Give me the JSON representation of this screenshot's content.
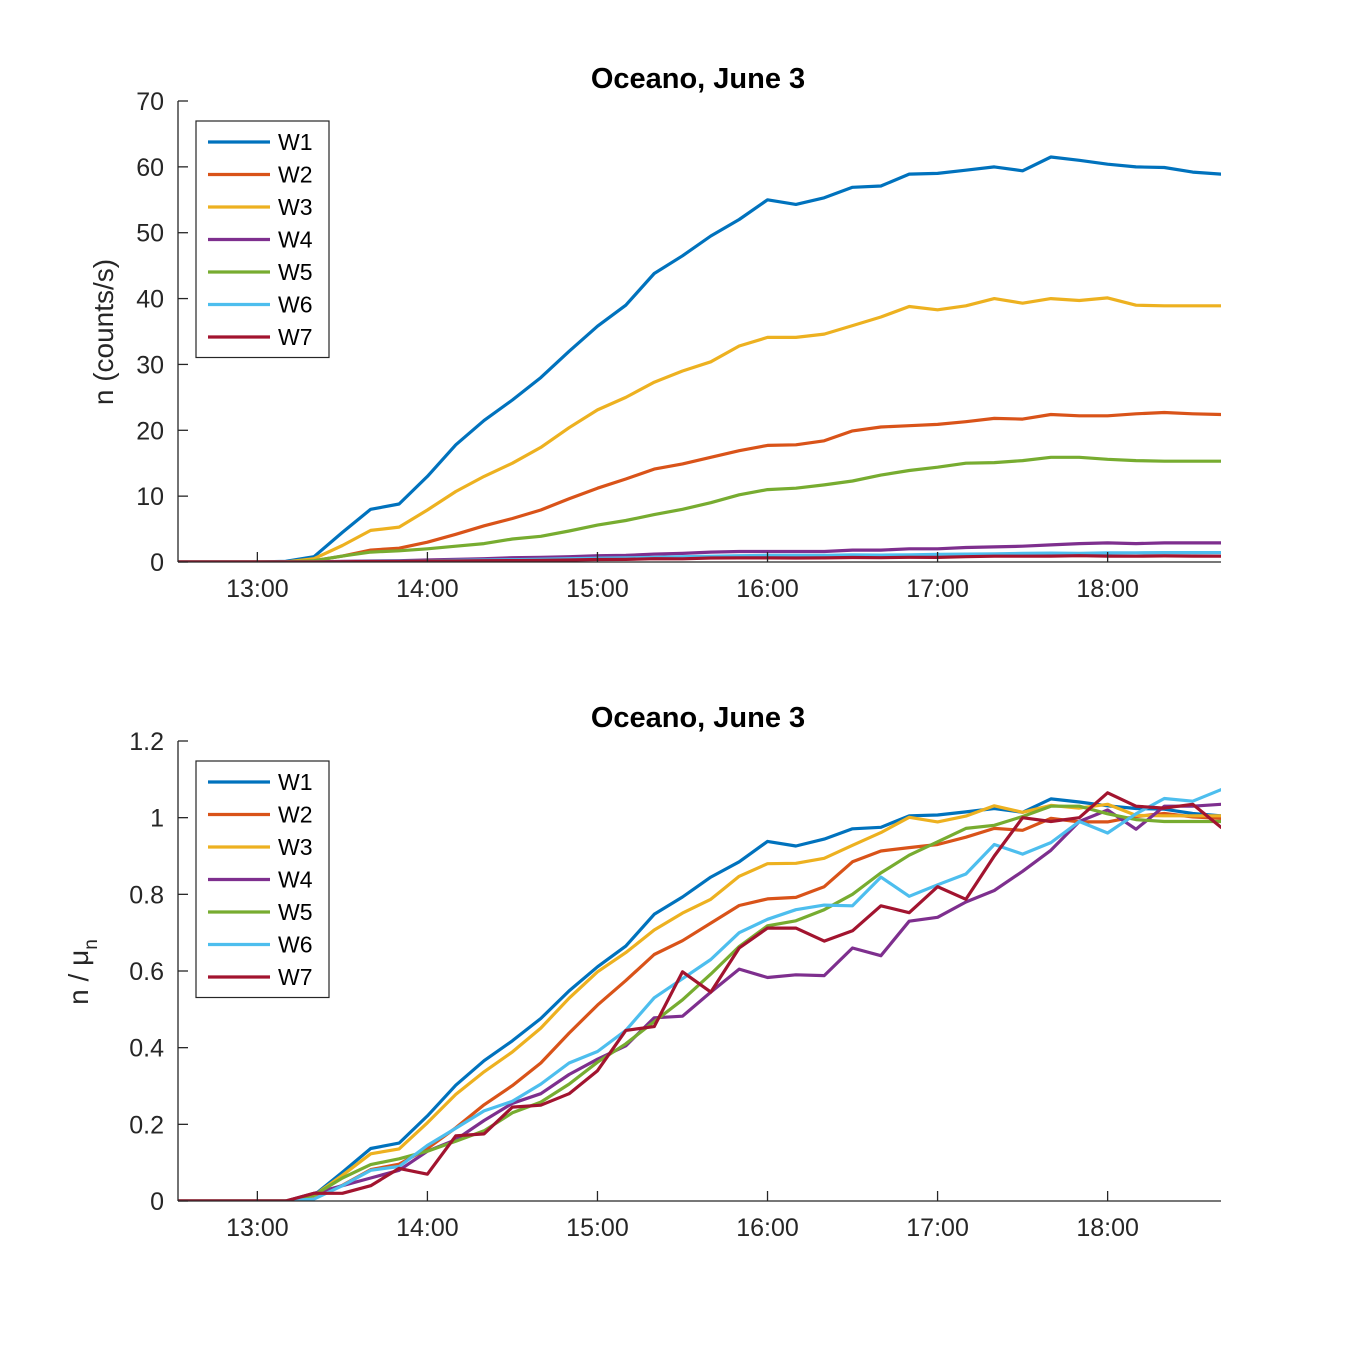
{
  "chart_data": [
    {
      "type": "line",
      "title": "Oceano, June 3",
      "ylabel": "n (counts/s)",
      "xlabel": "",
      "xlim": [
        "12:32",
        "18:40"
      ],
      "ylim": [
        0,
        70
      ],
      "xticks": [
        "13:00",
        "14:00",
        "15:00",
        "16:00",
        "17:00",
        "18:00"
      ],
      "yticks": [
        "0",
        "10",
        "20",
        "30",
        "40",
        "50",
        "60",
        "70"
      ],
      "legend_position": "top-left",
      "grid": false,
      "x": [
        "12:30",
        "12:40",
        "12:50",
        "13:00",
        "13:10",
        "13:20",
        "13:30",
        "13:40",
        "13:50",
        "14:00",
        "14:10",
        "14:20",
        "14:30",
        "14:40",
        "14:50",
        "15:00",
        "15:10",
        "15:20",
        "15:30",
        "15:40",
        "15:50",
        "16:00",
        "16:10",
        "16:20",
        "16:30",
        "16:40",
        "16:50",
        "17:00",
        "17:10",
        "17:20",
        "17:30",
        "17:40",
        "17:50",
        "18:00",
        "18:10",
        "18:20",
        "18:30",
        "18:40"
      ],
      "series": [
        {
          "name": "W1",
          "color": "#0072BD",
          "values": [
            0,
            0,
            0,
            0,
            0.1,
            0.8,
            4.5,
            8.0,
            8.8,
            13,
            17.8,
            21.5,
            24.6,
            28,
            32,
            35.8,
            39,
            43.8,
            46.5,
            49.5,
            52,
            55,
            54.3,
            55.3,
            56.9,
            57.1,
            58.9,
            59,
            59.5,
            60,
            59.4,
            61.5,
            61,
            60.4,
            60,
            59.9,
            59.2,
            58.9
          ]
        },
        {
          "name": "W2",
          "color": "#D95319",
          "values": [
            0,
            0,
            0,
            0,
            0,
            0.2,
            0.9,
            1.8,
            2.1,
            3.0,
            4.2,
            5.5,
            6.6,
            7.9,
            9.6,
            11.2,
            12.6,
            14.1,
            14.9,
            15.9,
            16.9,
            17.7,
            17.8,
            18.4,
            19.9,
            20.5,
            20.7,
            20.9,
            21.3,
            21.8,
            21.7,
            22.4,
            22.2,
            22.2,
            22.5,
            22.7,
            22.5,
            22.4
          ]
        },
        {
          "name": "W3",
          "color": "#EDB120",
          "values": [
            0,
            0,
            0,
            0,
            0,
            0.5,
            2.5,
            4.8,
            5.3,
            7.9,
            10.7,
            13.0,
            15.0,
            17.4,
            20.4,
            23.1,
            25.0,
            27.3,
            29.0,
            30.4,
            32.8,
            34.1,
            34.1,
            34.6,
            35.9,
            37.2,
            38.8,
            38.3,
            38.9,
            40.0,
            39.3,
            40.0,
            39.7,
            40.1,
            39.0,
            38.9,
            38.9,
            38.9
          ]
        },
        {
          "name": "W4",
          "color": "#7E2F8E",
          "values": [
            0,
            0,
            0,
            0,
            0,
            0,
            0.1,
            0.15,
            0.2,
            0.3,
            0.4,
            0.5,
            0.65,
            0.7,
            0.8,
            0.95,
            1.0,
            1.2,
            1.3,
            1.5,
            1.6,
            1.6,
            1.6,
            1.6,
            1.8,
            1.8,
            2.0,
            2.0,
            2.2,
            2.3,
            2.4,
            2.6,
            2.8,
            2.9,
            2.8,
            2.9,
            2.9,
            2.9
          ]
        },
        {
          "name": "W5",
          "color": "#77AC30",
          "values": [
            0,
            0,
            0,
            0,
            0,
            0.2,
            0.9,
            1.5,
            1.7,
            2.0,
            2.4,
            2.8,
            3.5,
            3.9,
            4.7,
            5.6,
            6.3,
            7.2,
            8.0,
            9.0,
            10.2,
            11.0,
            11.2,
            11.7,
            12.3,
            13.2,
            13.9,
            14.4,
            15.0,
            15.1,
            15.4,
            15.9,
            15.9,
            15.6,
            15.4,
            15.3,
            15.3,
            15.3
          ]
        },
        {
          "name": "W6",
          "color": "#4DBEEE",
          "values": [
            0,
            0,
            0,
            0,
            0,
            0,
            0.05,
            0.1,
            0.12,
            0.2,
            0.25,
            0.3,
            0.35,
            0.42,
            0.5,
            0.58,
            0.62,
            0.72,
            0.8,
            0.88,
            0.95,
            1.0,
            1.0,
            1.02,
            1.1,
            1.05,
            1.1,
            1.15,
            1.2,
            1.25,
            1.3,
            1.35,
            1.32,
            1.38,
            1.4,
            1.42,
            1.42,
            1.43
          ]
        },
        {
          "name": "W7",
          "color": "#A2142F",
          "values": [
            0,
            0,
            0,
            0,
            0,
            0,
            0.05,
            0.08,
            0.08,
            0.15,
            0.15,
            0.2,
            0.22,
            0.25,
            0.3,
            0.38,
            0.4,
            0.5,
            0.48,
            0.6,
            0.62,
            0.62,
            0.6,
            0.62,
            0.68,
            0.66,
            0.72,
            0.7,
            0.8,
            0.88,
            0.88,
            0.9,
            0.95,
            0.9,
            0.88,
            0.92,
            0.9,
            0.88
          ]
        }
      ]
    },
    {
      "type": "line",
      "title": "Oceano, June 3",
      "ylabel": "n / μn",
      "xlabel": "",
      "xlim": [
        "12:32",
        "18:40"
      ],
      "ylim": [
        0,
        1.2
      ],
      "xticks": [
        "13:00",
        "14:00",
        "15:00",
        "16:00",
        "17:00",
        "18:00"
      ],
      "yticks": [
        "0",
        "0.2",
        "0.4",
        "0.6",
        "0.8",
        "1",
        "1.2"
      ],
      "legend_position": "top-left",
      "grid": false,
      "x": [
        "12:30",
        "12:40",
        "12:50",
        "13:00",
        "13:10",
        "13:20",
        "13:30",
        "13:40",
        "13:50",
        "14:00",
        "14:10",
        "14:20",
        "14:30",
        "14:40",
        "14:50",
        "15:00",
        "15:10",
        "15:20",
        "15:30",
        "15:40",
        "15:50",
        "16:00",
        "16:10",
        "16:20",
        "16:30",
        "16:40",
        "16:50",
        "17:00",
        "17:10",
        "17:20",
        "17:30",
        "17:40",
        "17:50",
        "18:00",
        "18:10",
        "18:20",
        "18:30",
        "18:40"
      ],
      "series": [
        {
          "name": "W1",
          "color": "#0072BD",
          "values": [
            0,
            0,
            0,
            0,
            0,
            0.015,
            0.075,
            0.137,
            0.151,
            0.222,
            0.302,
            0.366,
            0.418,
            0.476,
            0.548,
            0.611,
            0.665,
            0.748,
            0.793,
            0.845,
            0.885,
            0.938,
            0.926,
            0.944,
            0.971,
            0.975,
            1.005,
            1.007,
            1.015,
            1.024,
            1.014,
            1.049,
            1.041,
            1.031,
            1.024,
            1.022,
            1.011,
            1.005
          ]
        },
        {
          "name": "W2",
          "color": "#D95319",
          "values": [
            0,
            0,
            0,
            0,
            0,
            0.009,
            0.041,
            0.082,
            0.096,
            0.137,
            0.191,
            0.251,
            0.301,
            0.36,
            0.438,
            0.511,
            0.575,
            0.643,
            0.679,
            0.725,
            0.771,
            0.788,
            0.792,
            0.82,
            0.885,
            0.913,
            0.922,
            0.93,
            0.949,
            0.972,
            0.967,
            0.998,
            0.989,
            0.989,
            1.003,
            1.011,
            1.002,
            0.998
          ]
        },
        {
          "name": "W3",
          "color": "#EDB120",
          "values": [
            0,
            0,
            0,
            0,
            0,
            0.014,
            0.067,
            0.123,
            0.136,
            0.204,
            0.278,
            0.337,
            0.389,
            0.451,
            0.529,
            0.598,
            0.648,
            0.707,
            0.751,
            0.787,
            0.847,
            0.88,
            0.881,
            0.894,
            0.928,
            0.961,
            1.001,
            0.989,
            1.004,
            1.031,
            1.014,
            1.032,
            1.025,
            1.035,
            1.006,
            1.005,
            1.005,
            1.005
          ]
        },
        {
          "name": "W4",
          "color": "#7E2F8E",
          "values": [
            0,
            0,
            0,
            0,
            0,
            0.02,
            0.04,
            0.06,
            0.08,
            0.13,
            0.16,
            0.21,
            0.255,
            0.28,
            0.33,
            0.37,
            0.405,
            0.478,
            0.482,
            0.545,
            0.605,
            0.583,
            0.59,
            0.588,
            0.66,
            0.64,
            0.73,
            0.74,
            0.78,
            0.81,
            0.86,
            0.915,
            0.99,
            1.02,
            0.97,
            1.03,
            1.03,
            1.035
          ]
        },
        {
          "name": "W5",
          "color": "#77AC30",
          "values": [
            0,
            0,
            0,
            0,
            0,
            0.015,
            0.06,
            0.095,
            0.11,
            0.13,
            0.156,
            0.183,
            0.23,
            0.258,
            0.305,
            0.362,
            0.41,
            0.468,
            0.525,
            0.592,
            0.664,
            0.718,
            0.731,
            0.76,
            0.8,
            0.856,
            0.902,
            0.937,
            0.972,
            0.98,
            1.003,
            1.03,
            1.03,
            1.01,
            0.995,
            0.99,
            0.99,
            0.99
          ]
        },
        {
          "name": "W6",
          "color": "#4DBEEE",
          "values": [
            0,
            0,
            0,
            0,
            0,
            0.005,
            0.04,
            0.08,
            0.09,
            0.145,
            0.19,
            0.235,
            0.26,
            0.305,
            0.36,
            0.39,
            0.445,
            0.53,
            0.58,
            0.63,
            0.7,
            0.735,
            0.76,
            0.772,
            0.77,
            0.845,
            0.795,
            0.825,
            0.853,
            0.93,
            0.905,
            0.935,
            0.99,
            0.96,
            1.01,
            1.05,
            1.043,
            1.073
          ]
        },
        {
          "name": "W7",
          "color": "#A2142F",
          "values": [
            0,
            0,
            0,
            0,
            0,
            0.02,
            0.02,
            0.04,
            0.085,
            0.07,
            0.17,
            0.175,
            0.245,
            0.25,
            0.28,
            0.34,
            0.445,
            0.455,
            0.598,
            0.545,
            0.66,
            0.712,
            0.712,
            0.678,
            0.705,
            0.77,
            0.752,
            0.82,
            0.787,
            0.9,
            1.0,
            0.99,
            1.0,
            1.065,
            1.03,
            1.025,
            1.035,
            0.975
          ]
        }
      ]
    }
  ]
}
